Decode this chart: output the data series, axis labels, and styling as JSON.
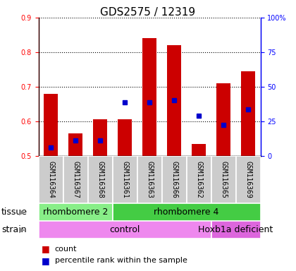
{
  "title": "GDS2575 / 12319",
  "samples": [
    "GSM116364",
    "GSM116367",
    "GSM116368",
    "GSM116361",
    "GSM116363",
    "GSM116366",
    "GSM116362",
    "GSM116365",
    "GSM116369"
  ],
  "bar_tops": [
    0.68,
    0.565,
    0.605,
    0.605,
    0.84,
    0.82,
    0.535,
    0.71,
    0.745
  ],
  "bar_bottom": 0.5,
  "blue_values": [
    0.525,
    0.545,
    0.545,
    0.655,
    0.655,
    0.66,
    0.615,
    0.59,
    0.635
  ],
  "ylim": [
    0.5,
    0.9
  ],
  "yticks": [
    0.5,
    0.6,
    0.7,
    0.8,
    0.9
  ],
  "right_yticks": [
    0,
    25,
    50,
    75,
    100
  ],
  "right_yticklabels": [
    "0",
    "25",
    "50",
    "75",
    "100%"
  ],
  "bar_color": "#cc0000",
  "blue_color": "#0000cc",
  "tissue_segments": [
    {
      "text": "rhombomere 2",
      "start": 0,
      "end": 2,
      "color": "#88ee88"
    },
    {
      "text": "rhombomere 4",
      "start": 3,
      "end": 8,
      "color": "#44cc44"
    }
  ],
  "strain_segments": [
    {
      "text": "control",
      "start": 0,
      "end": 6,
      "color": "#ee88ee"
    },
    {
      "text": "Hoxb1a deficient",
      "start": 7,
      "end": 8,
      "color": "#dd66dd"
    }
  ],
  "sample_bg_color": "#cccccc",
  "tissue_row_label": "tissue",
  "strain_row_label": "strain",
  "legend_count_label": "count",
  "legend_pct_label": "percentile rank within the sample",
  "title_fontsize": 11,
  "tick_fontsize": 7,
  "sample_fontsize": 7,
  "annot_fontsize": 9,
  "legend_fontsize": 8,
  "row_label_fontsize": 9
}
